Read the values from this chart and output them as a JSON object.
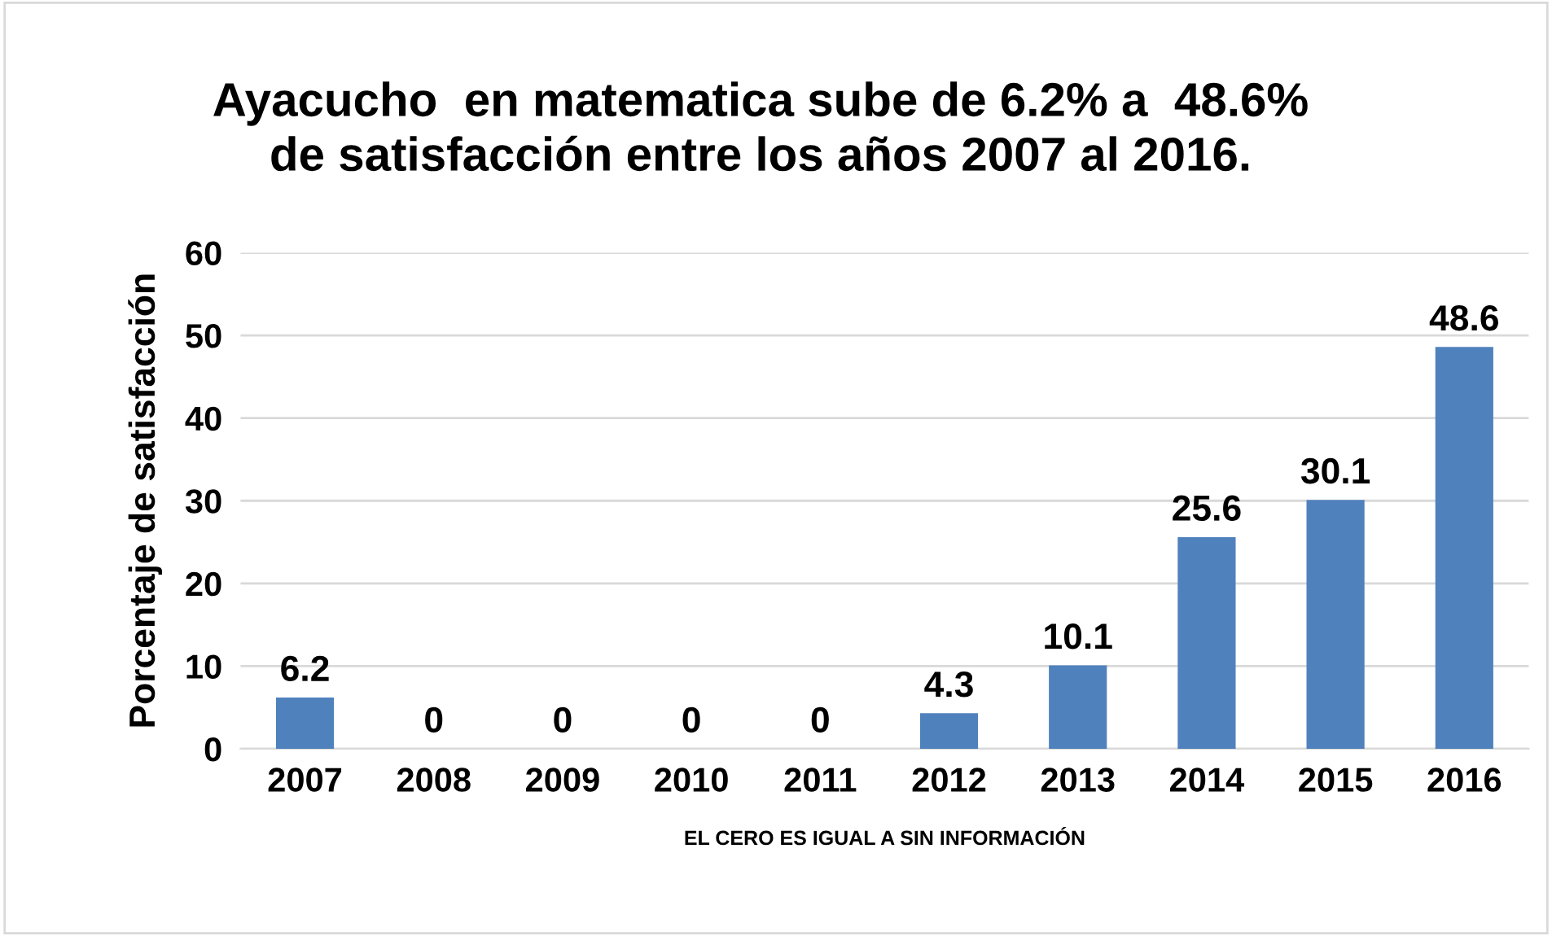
{
  "chart_data": {
    "type": "bar",
    "title": "Ayacucho  en matematica sube de 6.2% a  48.6%\nde satisfacción entre los años 2007 al 2016.",
    "ylabel": "Porcentaje de satisfacción",
    "xlabel": "EL CERO ES IGUAL A SIN INFORMACIÓN",
    "categories": [
      "2007",
      "2008",
      "2009",
      "2010",
      "2011",
      "2012",
      "2013",
      "2014",
      "2015",
      "2016"
    ],
    "values": [
      6.2,
      0,
      0,
      0,
      0,
      4.3,
      10.1,
      25.6,
      30.1,
      48.6
    ],
    "color": "#4f81bd",
    "ylim": [
      0,
      60
    ],
    "yticks": [
      0,
      10,
      20,
      30,
      40,
      50,
      60
    ],
    "grid": "y",
    "data_labels": true
  }
}
